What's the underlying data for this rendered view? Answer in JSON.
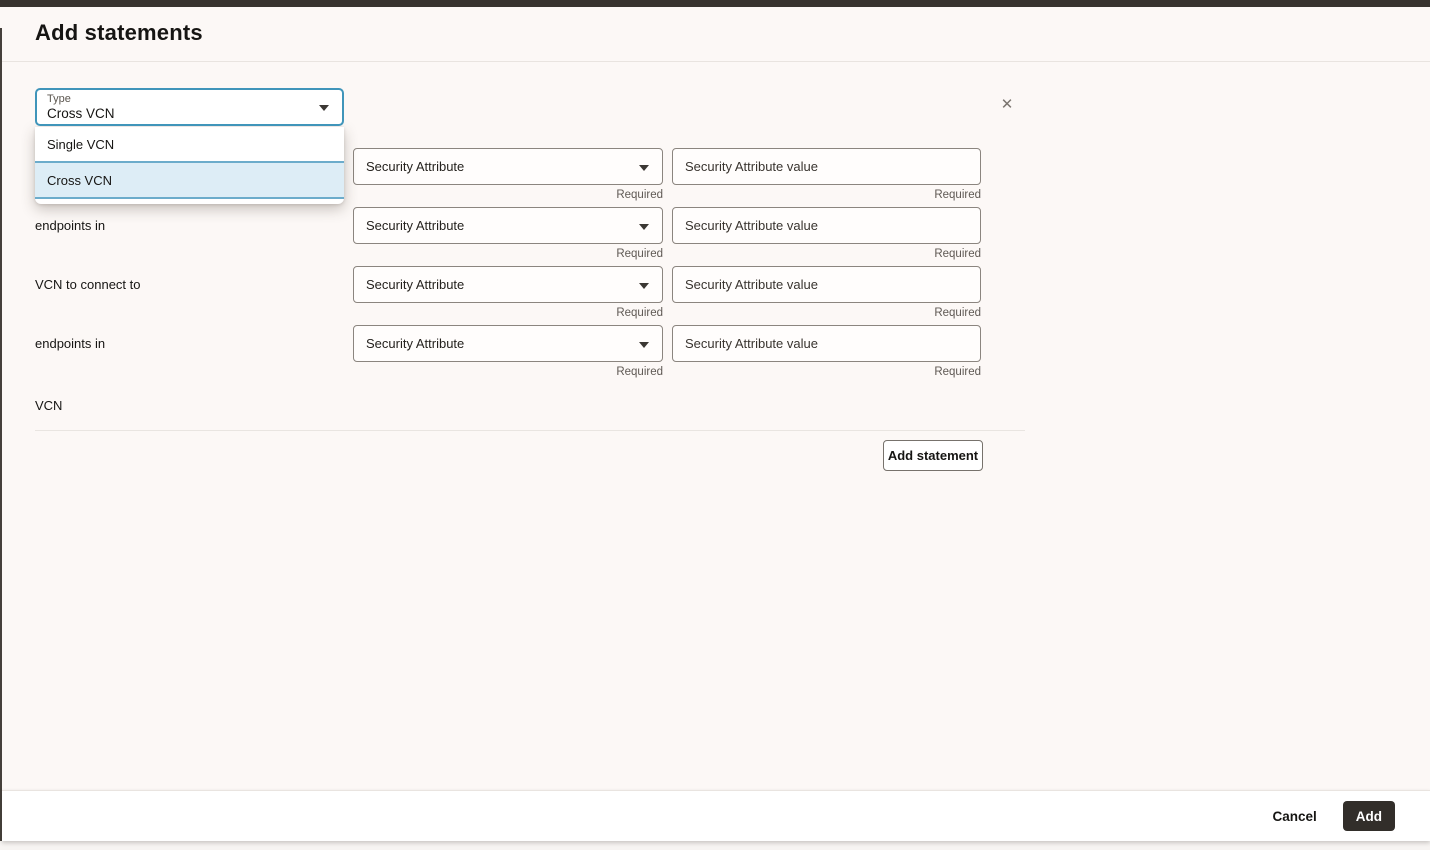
{
  "dialog": {
    "title": "Add statements"
  },
  "icons": {
    "close": "✕",
    "caret_down": "▾"
  },
  "type_field": {
    "label": "Type",
    "value": "Cross VCN"
  },
  "type_menu": {
    "options": [
      "Single VCN",
      "Cross VCN"
    ],
    "selected": "Cross VCN"
  },
  "statement": {
    "required_label": "Required",
    "rows": [
      {
        "label": "",
        "attribute_placeholder": "Security Attribute",
        "value_placeholder": "Security Attribute value"
      },
      {
        "label": "endpoints in",
        "attribute_placeholder": "Security Attribute",
        "value_placeholder": "Security Attribute value"
      },
      {
        "label": "VCN to connect to",
        "attribute_placeholder": "Security Attribute",
        "value_placeholder": "Security Attribute value"
      },
      {
        "label": "endpoints in",
        "attribute_placeholder": "Security Attribute",
        "value_placeholder": "Security Attribute value"
      }
    ],
    "trailing_label": "VCN",
    "add_statement_button": "Add statement"
  },
  "footer": {
    "cancel_button": "Cancel",
    "add_button": "Add"
  },
  "colors": {
    "top_bar": "#38332f",
    "background": "#fcf8f6",
    "accent_focus_border": "#4095ba",
    "selected_option_bg": "#ddedf6",
    "selected_option_border": "#6caccb",
    "field_border": "#8b857f",
    "primary_button_bg": "#322e2a",
    "divider": "#e9e4e0"
  }
}
